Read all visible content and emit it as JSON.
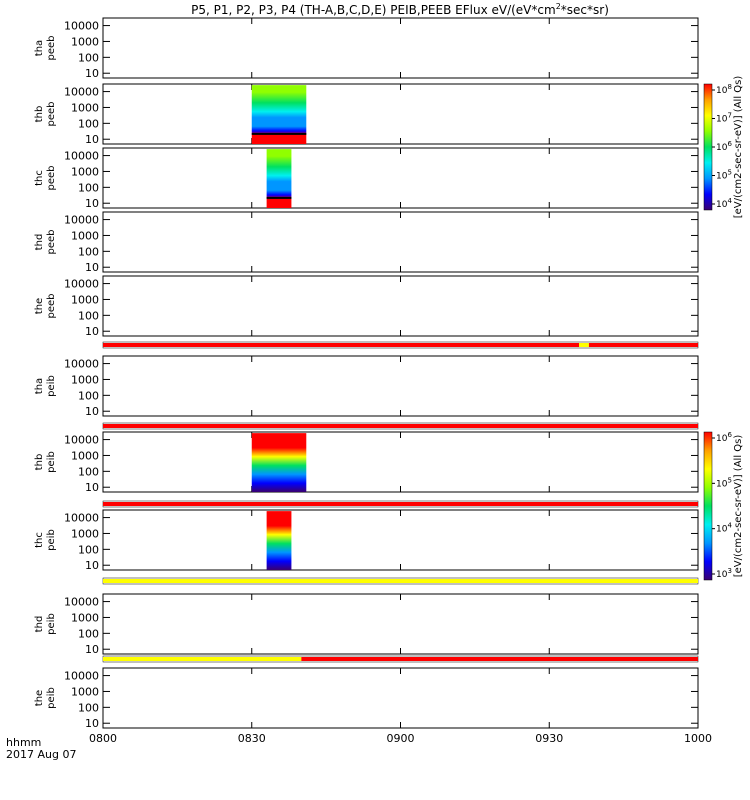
{
  "chart_data": {
    "type": "heatmap",
    "title": "P5, P1, P2, P3, P4 (TH-A,B,C,D,E) PEIB,PEEB EFlux eV/(eV*cm^2*sec*sr)",
    "title_parts": {
      "before": "P5, P1, P2, P3, P4 (TH-A,B,C,D,E) PEIB,PEEB EFlux eV/(eV*cm",
      "sup": "2",
      "after": "*sec*sr)"
    },
    "x_axis": {
      "label_line1": "hhmm",
      "label_line2": "2017 Aug 07",
      "ticks": [
        "0800",
        "0830",
        "0900",
        "0930",
        "1000"
      ],
      "range_minutes": [
        0,
        120
      ]
    },
    "y_ticks": [
      "10000",
      "1000",
      "100",
      "10"
    ],
    "y_range_eV": [
      5,
      30000
    ],
    "y_scale": "log",
    "panels": [
      {
        "label1": "tha",
        "label2": "peeb",
        "data": []
      },
      {
        "label1": "thb",
        "label2": "peeb",
        "data": [
          [
            30,
            41
          ]
        ]
      },
      {
        "label1": "thc",
        "label2": "peeb",
        "data": [
          [
            33,
            38
          ]
        ]
      },
      {
        "label1": "thd",
        "label2": "peeb",
        "data": []
      },
      {
        "label1": "the",
        "label2": "peeb",
        "data": []
      },
      {
        "label1": "tha",
        "label2": "peib",
        "data": []
      },
      {
        "label1": "thb",
        "label2": "peib",
        "data": [
          [
            30,
            41
          ]
        ]
      },
      {
        "label1": "thc",
        "label2": "peib",
        "data": [
          [
            33,
            38
          ]
        ]
      },
      {
        "label1": "thd",
        "label2": "peib",
        "data": []
      },
      {
        "label1": "the",
        "label2": "peib",
        "data": []
      }
    ],
    "status_bars": [
      {
        "after_panel": 5,
        "segments": [
          {
            "from": 0,
            "to": 96,
            "color": "#ff0000"
          },
          {
            "from": 96,
            "to": 98,
            "color": "#ffff00"
          },
          {
            "from": 98,
            "to": 120,
            "color": "#ff0000"
          }
        ]
      },
      {
        "after_panel": 6,
        "segments": [
          {
            "from": 0,
            "to": 120,
            "color": "#ff0000"
          }
        ]
      },
      {
        "after_panel": 7,
        "segments": [
          {
            "from": 0,
            "to": 120,
            "color": "#ff0000"
          }
        ]
      },
      {
        "after_panel": 8,
        "segments": [
          {
            "from": 0,
            "to": 120,
            "color": "#ffff00"
          }
        ]
      },
      {
        "after_panel": 9,
        "segments": [
          {
            "from": 0,
            "to": 40,
            "color": "#ffff00"
          },
          {
            "from": 40,
            "to": 120,
            "color": "#ff0000"
          }
        ]
      }
    ],
    "colorbars": [
      {
        "label": "[eV/(cm2-sec-sr-eV)] (All Qs)",
        "ticks": [
          {
            "base": "10",
            "exp": "8"
          },
          {
            "base": "10",
            "exp": "7"
          },
          {
            "base": "10",
            "exp": "6"
          },
          {
            "base": "10",
            "exp": "5"
          },
          {
            "base": "10",
            "exp": "4"
          }
        ]
      },
      {
        "label": "[eV/(cm2-sec-sr-eV)] (All Qs)",
        "ticks": [
          {
            "base": "10",
            "exp": "6"
          },
          {
            "base": "10",
            "exp": "5"
          },
          {
            "base": "10",
            "exp": "4"
          },
          {
            "base": "10",
            "exp": "3"
          }
        ]
      }
    ],
    "colormap": [
      "#3a0070",
      "#0000ff",
      "#0096ff",
      "#00f0f0",
      "#00e060",
      "#90ff00",
      "#ffff00",
      "#ffa000",
      "#ff0000"
    ],
    "grid": false,
    "legend": "right"
  }
}
